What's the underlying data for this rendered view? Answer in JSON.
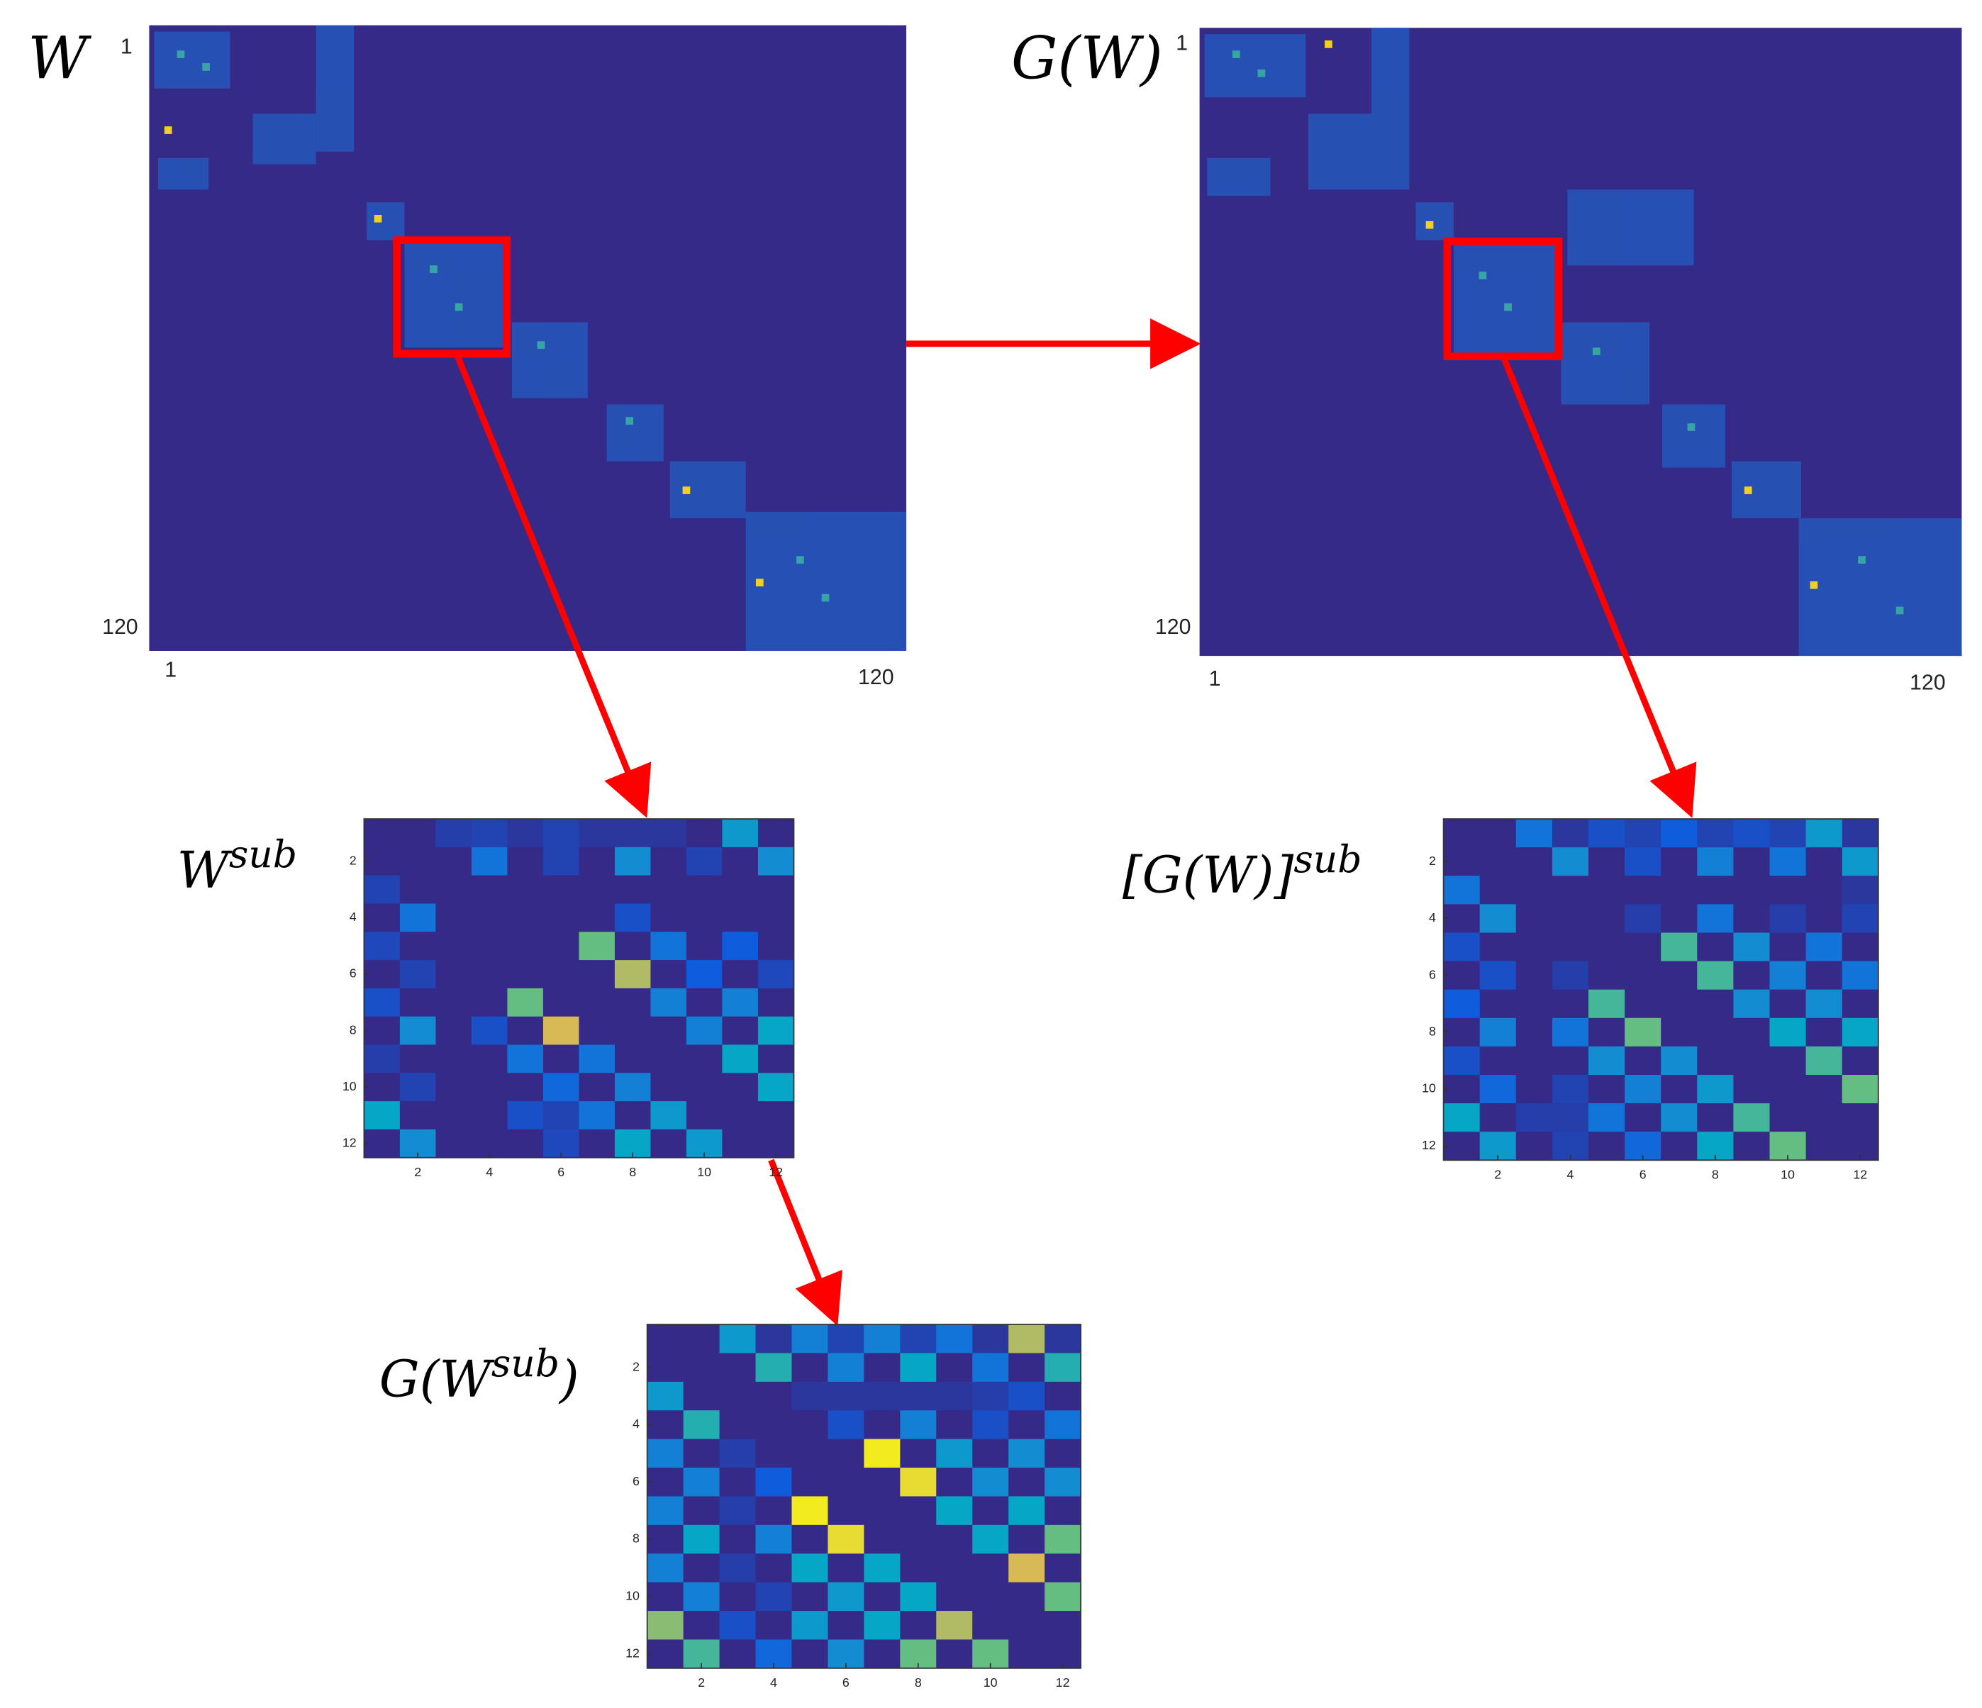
{
  "matrices": [
    {
      "label": {
        "main": "W"
      },
      "yticks": [
        1,
        120
      ],
      "xticks": [
        1,
        120
      ]
    },
    {
      "label": {
        "main": "G(W)"
      },
      "yticks": [
        1,
        120
      ],
      "xticks": [
        1,
        120
      ]
    }
  ],
  "heatmaps": [
    {
      "label": {
        "main": "W",
        "sup": "sub"
      },
      "color_range": [
        0,
        1
      ],
      "yticks": [
        2,
        4,
        6,
        8,
        10,
        12
      ],
      "xticks": [
        2,
        4,
        6,
        8,
        10,
        12
      ],
      "values": [
        [
          0,
          0,
          0.08,
          0.1,
          0.05,
          0.1,
          0.05,
          0.05,
          0.05,
          0,
          0.45,
          0
        ],
        [
          0,
          0,
          0,
          0.3,
          0,
          0.1,
          0,
          0.4,
          0,
          0.1,
          0,
          0.4
        ],
        [
          0.1,
          0,
          0,
          0,
          0,
          0,
          0,
          0,
          0,
          0,
          0,
          0
        ],
        [
          0,
          0.3,
          0,
          0,
          0,
          0,
          0,
          0.15,
          0,
          0,
          0,
          0
        ],
        [
          0.12,
          0,
          0,
          0,
          0,
          0,
          0.65,
          0,
          0.3,
          0,
          0.2,
          0
        ],
        [
          0,
          0.1,
          0,
          0,
          0,
          0,
          0,
          0.75,
          0,
          0.2,
          0,
          0.12
        ],
        [
          0.15,
          0,
          0,
          0,
          0.65,
          0,
          0,
          0,
          0.35,
          0,
          0.35,
          0
        ],
        [
          0,
          0.4,
          0,
          0.15,
          0,
          0.8,
          0,
          0,
          0,
          0.35,
          0,
          0.5
        ],
        [
          0.08,
          0,
          0,
          0,
          0.3,
          0,
          0.3,
          0,
          0,
          0,
          0.5,
          0
        ],
        [
          0,
          0.1,
          0,
          0,
          0,
          0.25,
          0,
          0.35,
          0,
          0,
          0,
          0.5
        ],
        [
          0.5,
          0,
          0,
          0,
          0.15,
          0.1,
          0.3,
          0,
          0.45,
          0,
          0,
          0
        ],
        [
          0,
          0.4,
          0,
          0,
          0,
          0.12,
          0,
          0.5,
          0,
          0.45,
          0,
          0
        ]
      ]
    },
    {
      "label": {
        "main": "[G(W)]",
        "sup": "sub"
      },
      "color_range": [
        0,
        1
      ],
      "yticks": [
        2,
        4,
        6,
        8,
        10,
        12
      ],
      "xticks": [
        2,
        4,
        6,
        8,
        10,
        12
      ],
      "values": [
        [
          0,
          0,
          0.3,
          0.05,
          0.15,
          0.1,
          0.2,
          0.1,
          0.15,
          0.1,
          0.45,
          0.05
        ],
        [
          0,
          0,
          0,
          0.4,
          0,
          0.15,
          0,
          0.35,
          0,
          0.3,
          0,
          0.45
        ],
        [
          0.3,
          0,
          0,
          0,
          0,
          0,
          0,
          0,
          0,
          0,
          0,
          0.05
        ],
        [
          0,
          0.4,
          0,
          0,
          0,
          0.08,
          0,
          0.3,
          0,
          0.08,
          0,
          0.1
        ],
        [
          0.15,
          0,
          0,
          0,
          0,
          0,
          0.6,
          0,
          0.4,
          0,
          0.3,
          0
        ],
        [
          0,
          0.15,
          0,
          0.08,
          0,
          0,
          0,
          0.6,
          0,
          0.35,
          0,
          0.3
        ],
        [
          0.2,
          0,
          0,
          0,
          0.6,
          0,
          0,
          0,
          0.4,
          0,
          0.4,
          0
        ],
        [
          0,
          0.35,
          0,
          0.3,
          0,
          0.65,
          0,
          0,
          0,
          0.5,
          0,
          0.5
        ],
        [
          0.15,
          0,
          0,
          0,
          0.4,
          0,
          0.4,
          0,
          0,
          0,
          0.6,
          0
        ],
        [
          0,
          0.25,
          0,
          0.1,
          0,
          0.35,
          0,
          0.45,
          0,
          0,
          0,
          0.65
        ],
        [
          0.5,
          0,
          0.08,
          0.08,
          0.3,
          0,
          0.4,
          0,
          0.6,
          0,
          0,
          0
        ],
        [
          0,
          0.45,
          0,
          0.1,
          0,
          0.25,
          0,
          0.5,
          0,
          0.65,
          0,
          0
        ]
      ]
    },
    {
      "label": {
        "main": "G(W",
        "sup": "sub",
        "close": ")"
      },
      "color_range": [
        0,
        1
      ],
      "yticks": [
        2,
        4,
        6,
        8,
        10,
        12
      ],
      "xticks": [
        2,
        4,
        6,
        8,
        10,
        12
      ],
      "values": [
        [
          0,
          0,
          0.45,
          0.05,
          0.35,
          0.1,
          0.35,
          0.1,
          0.3,
          0.05,
          0.75,
          0.05
        ],
        [
          0,
          0,
          0,
          0.55,
          0,
          0.35,
          0,
          0.5,
          0,
          0.3,
          0,
          0.55
        ],
        [
          0.45,
          0,
          0,
          0,
          0.05,
          0.05,
          0.05,
          0.05,
          0.05,
          0.08,
          0.15,
          0
        ],
        [
          0,
          0.55,
          0,
          0,
          0,
          0.15,
          0,
          0.35,
          0,
          0.15,
          0,
          0.3
        ],
        [
          0.35,
          0,
          0.08,
          0,
          0,
          0,
          0.95,
          0,
          0.45,
          0,
          0.4,
          0
        ],
        [
          0,
          0.35,
          0,
          0.2,
          0,
          0,
          0,
          0.9,
          0,
          0.4,
          0,
          0.4
        ],
        [
          0.35,
          0,
          0.08,
          0,
          0.95,
          0,
          0,
          0,
          0.5,
          0,
          0.5,
          0
        ],
        [
          0,
          0.5,
          0,
          0.35,
          0,
          0.9,
          0,
          0,
          0,
          0.5,
          0,
          0.65
        ],
        [
          0.35,
          0,
          0.08,
          0,
          0.5,
          0,
          0.5,
          0,
          0,
          0,
          0.8,
          0
        ],
        [
          0,
          0.35,
          0,
          0.1,
          0,
          0.45,
          0,
          0.5,
          0,
          0,
          0,
          0.65
        ],
        [
          0.7,
          0,
          0.15,
          0,
          0.45,
          0,
          0.5,
          0,
          0.75,
          0,
          0,
          0
        ],
        [
          0,
          0.6,
          0,
          0.25,
          0,
          0.4,
          0,
          0.65,
          0,
          0.65,
          0,
          0
        ]
      ]
    }
  ]
}
